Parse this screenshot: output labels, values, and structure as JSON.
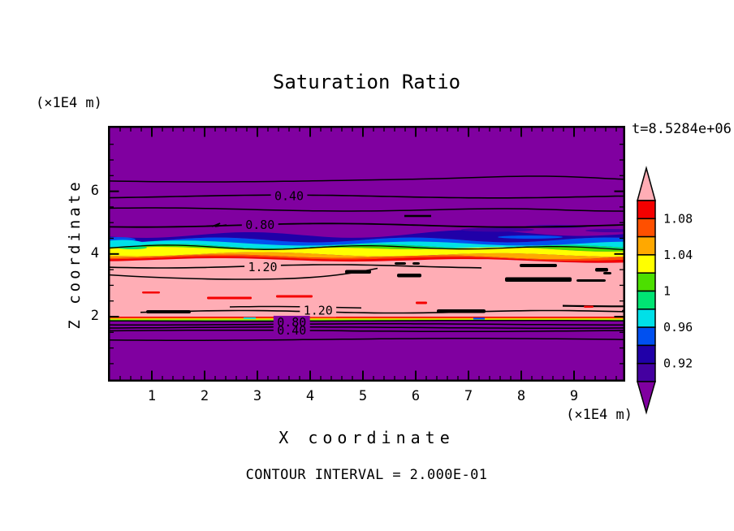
{
  "title": "Saturation Ratio",
  "annotations": {
    "left_axis_units": "(×1E4 m)",
    "bottom_axis_units": "(×1E4 m)",
    "time_label": "t=8.5284e+06",
    "contour_interval_label": "CONTOUR INTERVAL = 2.000E-01"
  },
  "axes": {
    "x": {
      "title": "X coordinate",
      "tick_labels": [
        "1",
        "2",
        "3",
        "4",
        "5",
        "6",
        "7",
        "8",
        "9"
      ],
      "tick_values": [
        1,
        2,
        3,
        4,
        5,
        6,
        7,
        8,
        9
      ],
      "range": [
        0,
        10
      ],
      "major_tick_step": 1,
      "minor_tick_step": 0.2
    },
    "y": {
      "title": "Z coordinate",
      "tick_labels": [
        "6",
        "4",
        "2"
      ],
      "tick_values": [
        6,
        4,
        2
      ],
      "range": [
        0,
        8
      ],
      "major_tick_step": 2,
      "minor_tick_step": 0.5
    }
  },
  "colorbar": {
    "labels": [
      "1.08",
      "1.04",
      "1",
      "0.96",
      "0.92"
    ],
    "boundary_values": [
      1.1,
      1.08,
      1.06,
      1.04,
      1.02,
      1.0,
      0.98,
      0.96,
      0.94,
      0.92,
      0.9
    ]
  },
  "chart_data": {
    "type": "filled-contour",
    "title": "Saturation Ratio",
    "xlabel": "X coordinate (×1E4 m)",
    "ylabel": "Z coordinate (×1E4 m)",
    "x_range": [
      0,
      10
    ],
    "z_range": [
      0,
      8
    ],
    "time": "t=8.5284e+06",
    "contour_interval": 0.2,
    "fill_levels": [
      0.9,
      0.92,
      0.94,
      0.96,
      0.98,
      1.0,
      1.02,
      1.04,
      1.06,
      1.08,
      1.1
    ],
    "fill_colors": [
      "#8000A0",
      "#4400A0",
      "#2000A8",
      "#0050F0",
      "#00E0E8",
      "#00E473",
      "#4CDF00",
      "#FFFF00",
      "#FFA800",
      "#FF5000",
      "#F40000",
      "#FFADB5"
    ],
    "contour_labels": [
      {
        "text": "0.40",
        "x": 3.6,
        "z": 5.85
      },
      {
        "text": "0.80",
        "x": 3.05,
        "z": 4.93
      },
      {
        "text": "1.20",
        "x": 3.1,
        "z": 3.58
      },
      {
        "text": "1.20",
        "x": 4.15,
        "z": 2.2
      },
      {
        "text": "0.80",
        "x": 3.65,
        "z": 1.82
      },
      {
        "text": "0.40",
        "x": 3.65,
        "z": 1.56
      }
    ],
    "line_contours_z": {
      "0.20_upper": 6.35,
      "0.40_upper": 5.85,
      "0.60_upper": 5.42,
      "0.80_upper": 4.92,
      "1.00_band": 4.16,
      "1.20_upper": 3.6,
      "1.20_lower": 2.25,
      "0.80_lower": 1.87,
      "0.60_lower": 1.76,
      "0.40_lower": 1.65,
      "0.20_lower": 1.28
    },
    "z_profile": [
      {
        "z": 8.0,
        "S": 0.05
      },
      {
        "z": 6.35,
        "S": 0.2
      },
      {
        "z": 5.85,
        "S": 0.4
      },
      {
        "z": 5.4,
        "S": 0.6
      },
      {
        "z": 4.9,
        "S": 0.8
      },
      {
        "z": 4.6,
        "S": 0.9
      },
      {
        "z": 3.95,
        "S": 1.1
      },
      {
        "z": 3.6,
        "S": 1.2
      },
      {
        "z": 2.2,
        "S": 1.2
      },
      {
        "z": 2.0,
        "S": 1.0
      },
      {
        "z": 1.87,
        "S": 0.8
      },
      {
        "z": 1.65,
        "S": 0.4
      },
      {
        "z": 1.28,
        "S": 0.2
      },
      {
        "z": 0.0,
        "S": 0.05
      }
    ]
  }
}
